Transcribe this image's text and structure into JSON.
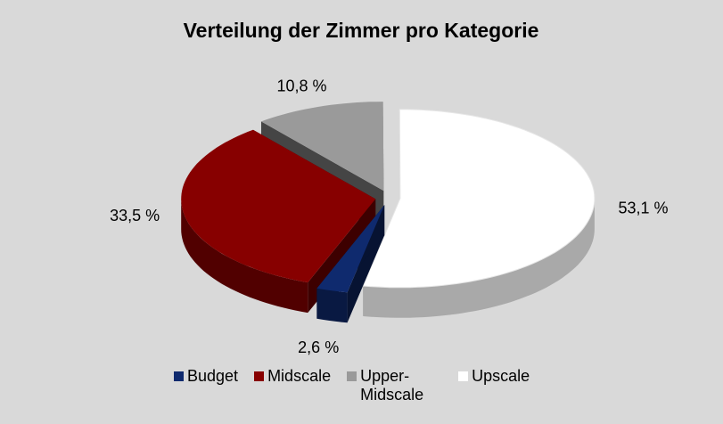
{
  "chart_data": {
    "type": "pie3d",
    "title": "Verteilung der Zimmer pro Kategorie",
    "categories": [
      "Budget",
      "Midscale",
      "Upper-Midscale",
      "Upscale"
    ],
    "values": [
      2.6,
      33.5,
      10.8,
      53.1
    ],
    "value_labels": [
      "2,6 %",
      "33,5 %",
      "10,8 %",
      "53,1 %"
    ],
    "colors": [
      "#0f2a6e",
      "#870000",
      "#9a9a9a",
      "#ffffff"
    ],
    "legend": "bottom"
  }
}
